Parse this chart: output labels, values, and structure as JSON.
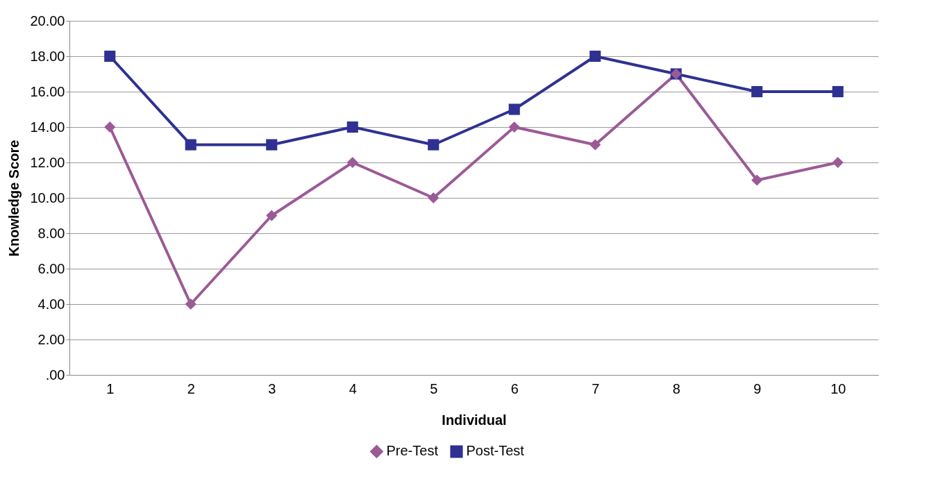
{
  "chart_data": {
    "type": "line",
    "xlabel": "Individual",
    "ylabel": "Knowledge Score",
    "categories": [
      "1",
      "2",
      "3",
      "4",
      "5",
      "6",
      "7",
      "8",
      "9",
      "10"
    ],
    "series": [
      {
        "name": "Pre-Test",
        "color": "#9b5a96",
        "marker": "diamond",
        "values": [
          14,
          4,
          9,
          12,
          10,
          14,
          13,
          17,
          11,
          12
        ]
      },
      {
        "name": "Post-Test",
        "color": "#2e3192",
        "marker": "square",
        "values": [
          18,
          13,
          13,
          14,
          13,
          15,
          18,
          17,
          16,
          16
        ]
      }
    ],
    "ylim": [
      0,
      20
    ],
    "yticks": [
      {
        "value": 0,
        "label": ".00"
      },
      {
        "value": 2,
        "label": "2.00"
      },
      {
        "value": 4,
        "label": "4.00"
      },
      {
        "value": 6,
        "label": "6.00"
      },
      {
        "value": 8,
        "label": "8.00"
      },
      {
        "value": 10,
        "label": "10.00"
      },
      {
        "value": 12,
        "label": "12.00"
      },
      {
        "value": 14,
        "label": "14.00"
      },
      {
        "value": 16,
        "label": "16.00"
      },
      {
        "value": 18,
        "label": "18.00"
      },
      {
        "value": 20,
        "label": "20.00"
      }
    ],
    "grid": "y",
    "legend": "bottom",
    "line_style": "solid"
  }
}
